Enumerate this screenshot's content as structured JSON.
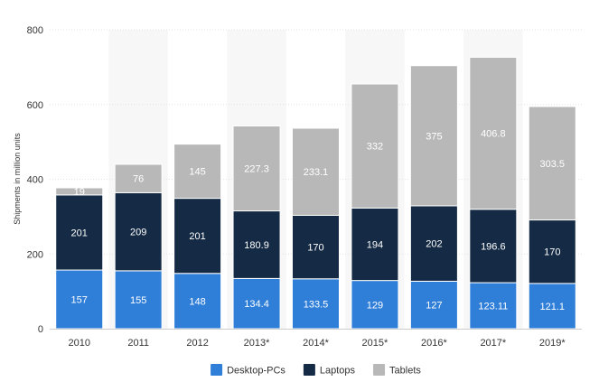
{
  "chart_data": {
    "type": "bar",
    "stacked": true,
    "categories": [
      "2010",
      "2011",
      "2012",
      "2013*",
      "2014*",
      "2015*",
      "2016*",
      "2017*",
      "2019*"
    ],
    "series": [
      {
        "name": "Desktop-PCs",
        "color": "#2f7ed8",
        "values": [
          157,
          155,
          148,
          134.4,
          133.5,
          129,
          127,
          123.11,
          121.1
        ],
        "labels": [
          "157",
          "155",
          "148",
          "134.4",
          "133.5",
          "129",
          "127",
          "123.11",
          "121.1"
        ]
      },
      {
        "name": "Laptops",
        "color": "#152b45",
        "values": [
          201,
          209,
          201,
          180.9,
          170,
          194,
          202,
          196.6,
          170
        ],
        "labels": [
          "201",
          "209",
          "201",
          "180.9",
          "170",
          "194",
          "202",
          "196.6",
          "170"
        ]
      },
      {
        "name": "Tablets",
        "color": "#b8b8b8",
        "values": [
          19,
          76,
          145,
          227.3,
          233.1,
          332,
          375,
          406.8,
          303.5
        ],
        "labels": [
          "19",
          "76",
          "145",
          "227.3",
          "233.1",
          "332",
          "375",
          "406.8",
          "303.5"
        ]
      }
    ],
    "ylabel": "Shipments in million units",
    "xlabel": "",
    "ylim": [
      0,
      800
    ],
    "yticks": [
      "0",
      "200",
      "400",
      "600",
      "800"
    ],
    "grid": true,
    "legend_position": "bottom-center",
    "band_color": "#f7f7f7",
    "grid_color": "#e4e4e4"
  }
}
